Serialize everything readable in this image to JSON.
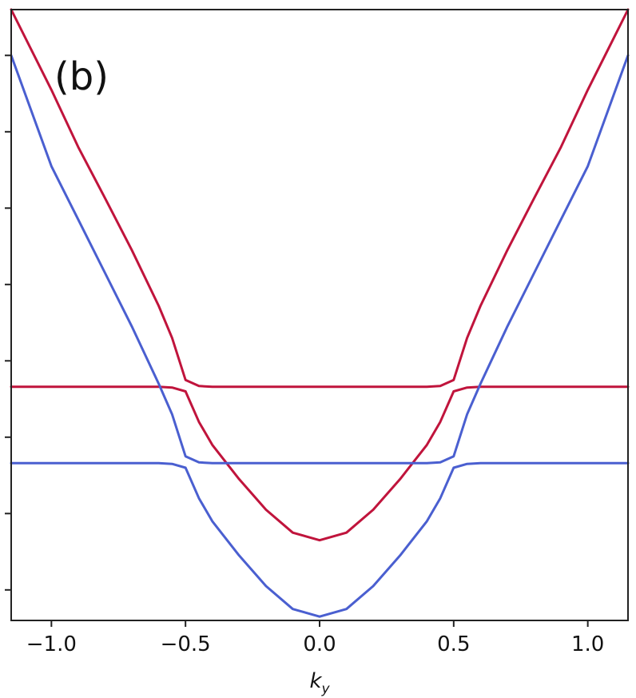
{
  "chart_data": {
    "type": "line",
    "panel_label": "(b)",
    "title": "",
    "xlabel": {
      "base": "k",
      "sub": "y"
    },
    "ylabel": "",
    "xlim": [
      -1.15,
      1.15
    ],
    "ylim": [
      -0.4,
      7.6
    ],
    "x_ticks": [
      -1.0,
      -0.5,
      0.0,
      0.5,
      1.0
    ],
    "x_tick_labels": [
      "−1.0",
      "−0.5",
      "0.0",
      "0.5",
      "1.0"
    ],
    "y_ticks": [
      0,
      1,
      2,
      3,
      4,
      5,
      6,
      7
    ],
    "y_tick_labels": [],
    "grid": false,
    "legend": "none",
    "colors": {
      "red": "#c0143c",
      "blue": "#4a5fd0"
    },
    "series": [
      {
        "color": "red",
        "x": [
          -1.15,
          -1.0,
          -0.9,
          -0.8,
          -0.7,
          -0.6,
          -0.55,
          -0.5,
          -0.45,
          -0.4,
          -0.2,
          0.0,
          0.2,
          0.4,
          0.45,
          0.5,
          0.55,
          0.6,
          0.7,
          0.8,
          0.9,
          1.0,
          1.15
        ],
        "y": [
          7.6,
          6.55,
          5.8,
          5.13,
          4.45,
          3.72,
          3.3,
          2.75,
          2.67,
          2.66,
          2.66,
          2.66,
          2.66,
          2.66,
          2.67,
          2.75,
          3.3,
          3.72,
          4.45,
          5.13,
          5.8,
          6.55,
          7.6
        ]
      },
      {
        "color": "red",
        "x": [
          -1.15,
          -0.8,
          -0.6,
          -0.55,
          -0.5,
          -0.45,
          -0.4,
          -0.3,
          -0.2,
          -0.1,
          0.0,
          0.1,
          0.2,
          0.3,
          0.4,
          0.45,
          0.5,
          0.55,
          0.6,
          0.8,
          1.15
        ],
        "y": [
          2.66,
          2.66,
          2.66,
          2.65,
          2.6,
          2.2,
          1.9,
          1.45,
          1.05,
          0.75,
          0.65,
          0.75,
          1.05,
          1.45,
          1.9,
          2.2,
          2.6,
          2.65,
          2.66,
          2.66,
          2.66
        ]
      },
      {
        "color": "blue",
        "x": [
          -1.15,
          -1.0,
          -0.9,
          -0.8,
          -0.7,
          -0.6,
          -0.55,
          -0.5,
          -0.45,
          -0.4,
          -0.2,
          0.0,
          0.2,
          0.4,
          0.45,
          0.5,
          0.55,
          0.6,
          0.7,
          0.8,
          0.9,
          1.0,
          1.15
        ],
        "y": [
          7.0,
          5.55,
          4.85,
          4.15,
          3.45,
          2.7,
          2.3,
          1.75,
          1.67,
          1.66,
          1.66,
          1.66,
          1.66,
          1.66,
          1.67,
          1.75,
          2.3,
          2.7,
          3.45,
          4.15,
          4.85,
          5.55,
          7.0
        ]
      },
      {
        "color": "blue",
        "x": [
          -1.15,
          -0.8,
          -0.6,
          -0.55,
          -0.5,
          -0.45,
          -0.4,
          -0.3,
          -0.2,
          -0.1,
          0.0,
          0.1,
          0.2,
          0.3,
          0.4,
          0.45,
          0.5,
          0.55,
          0.6,
          0.8,
          1.15
        ],
        "y": [
          1.66,
          1.66,
          1.66,
          1.65,
          1.6,
          1.2,
          0.9,
          0.45,
          0.05,
          -0.25,
          -0.35,
          -0.25,
          0.05,
          0.45,
          0.9,
          1.2,
          1.6,
          1.65,
          1.66,
          1.66,
          1.66
        ]
      }
    ]
  }
}
